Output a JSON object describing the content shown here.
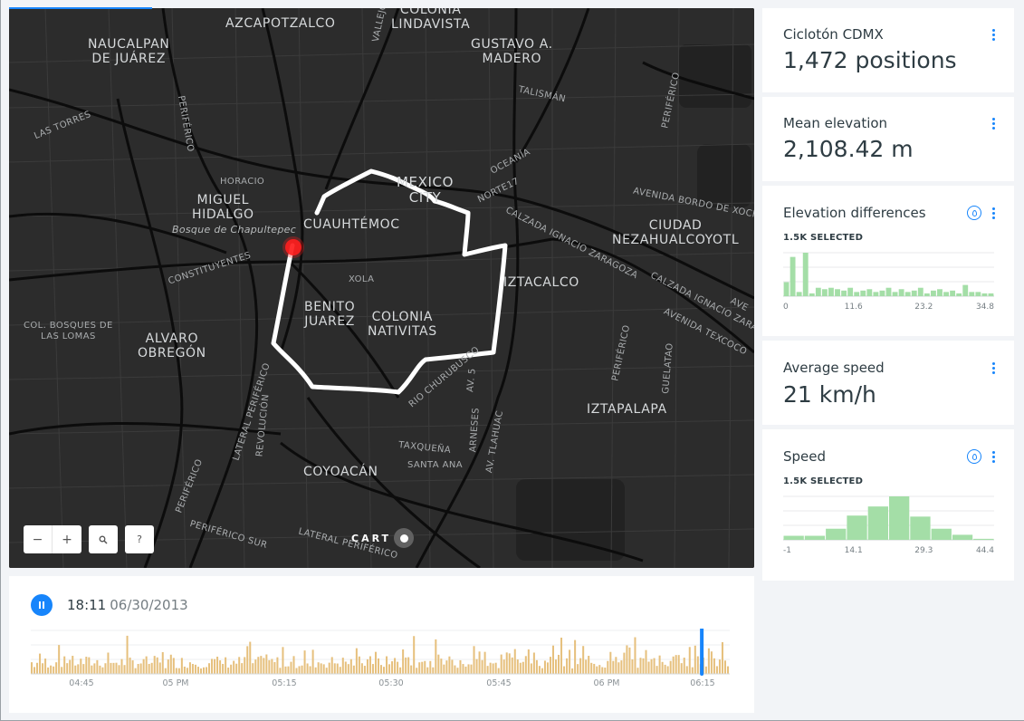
{
  "map": {
    "labels": {
      "azcapotzalco": "AZCAPOTZALCO",
      "colonia_lindavista": "COLONIA\nLINDAVISTA",
      "gustavo": "GUSTAVO A.\nMADERO",
      "naucalpan": "NAUCALPAN\nDE JUÁREZ",
      "las_torres": "LAS TORRES",
      "periferico_nw": "PERIFÉRICO",
      "vallejo": "VALLEJO",
      "talisman": "TALISMÁN",
      "oceania": "OCEANÍA",
      "periferico_ne": "PERIFÉRICO",
      "horacio": "HORACIO",
      "mexico_city": "MEXICO\nCITY",
      "norte17": "NORTE17",
      "avenida_bordo": "AVENIDA BORDO DE XOCH",
      "miguel_hidalgo": "MIGUEL\nHIDALGO",
      "cuauhtemoc": "CUAUHTÉMOC",
      "bosque": "Bosque de Chapultepec",
      "calzada_zaragoza1": "CALZADA IGNACIO ZARAGOZA",
      "ciudad_neza": "CIUDAD\nNEZAHUALCOYOTL",
      "constituyentes": "CONSTITUYENTES",
      "xola": "XOLA",
      "iztacalco": "IZTACALCO",
      "calzada_zaragoza2": "CALZADA IGNACIO ZARAGOZA",
      "benito_juarez": "BENITO\nJUAREZ",
      "colonia_nativitas": "COLONIA\nNATIVITAS",
      "avenida_texcoco": "AVENIDA TEXCOCO",
      "col_bosques": "COL. BOSQUES DE\nLAS LOMAS",
      "alvaro_obregon": "ALVARO\nOBREGÓN",
      "periferico_e": "PERIFÉRICO",
      "guelatao": "GUELATAO",
      "churubusco": "RIO CHURUBUSCO",
      "av5": "AV. 5",
      "lateral_periferico": "LATERAL PERIFÉRICO",
      "revolucion": "REVOLUCIÓN",
      "iztapalapa": "IZTAPALAPA",
      "arneses": "ARNESES",
      "tlahuac": "AV. TLAHUAC",
      "taxquena": "TAXQUEÑA",
      "santa_ana": "SANTA ANA",
      "coyoacan": "COYOACÁN",
      "periferico_s": "PERIFÉRICO",
      "periferico_sur": "PERIFÉRICO SUR",
      "lateral_periferico2": "LATERAL PERIFÉRICO",
      "av_e": "AVE"
    },
    "controls": {
      "zoom_out": "−",
      "zoom_in": "+",
      "search_icon": "search-icon",
      "help": "?"
    },
    "attribution": "CART"
  },
  "timeline": {
    "time": "18:11",
    "date": "06/30/2013",
    "ticks": [
      "04:45",
      "05 PM",
      "05:15",
      "05:30",
      "05:45",
      "06 PM",
      "06:15"
    ],
    "bar_color": "#e6c07d",
    "cursor_color": "#1785fb",
    "cursor_position": 0.96
  },
  "widgets": {
    "positions": {
      "title": "Ciclotón CDMX",
      "value": "1,472 positions"
    },
    "mean_elevation": {
      "title": "Mean elevation",
      "value": "2,108.42 m"
    },
    "elevation_diff": {
      "title": "Elevation differences",
      "selected": "1.5K SELECTED"
    },
    "avg_speed": {
      "title": "Average speed",
      "value": "21 km/h"
    },
    "speed": {
      "title": "Speed",
      "selected": "1.5K SELECTED"
    }
  },
  "accent": "#1785fb",
  "histogram_color": "#a4dea7",
  "chart_data": [
    {
      "type": "bar",
      "title": "Elevation differences",
      "x_ticks": [
        "0",
        "11.6",
        "23.2",
        "34.8"
      ],
      "values": [
        10,
        28,
        3,
        31,
        2,
        6,
        5,
        6,
        5,
        4,
        6,
        3,
        4,
        5,
        3,
        4,
        6,
        3,
        5,
        3,
        4,
        6,
        2,
        4,
        5,
        3,
        4,
        2,
        8,
        3,
        3,
        2,
        2
      ]
    },
    {
      "type": "bar",
      "title": "Speed",
      "x_ticks": [
        "-1",
        "14.1",
        "29.3",
        "44.4"
      ],
      "values": [
        4,
        4,
        11,
        24,
        33,
        43,
        23,
        11,
        5,
        1
      ]
    }
  ]
}
